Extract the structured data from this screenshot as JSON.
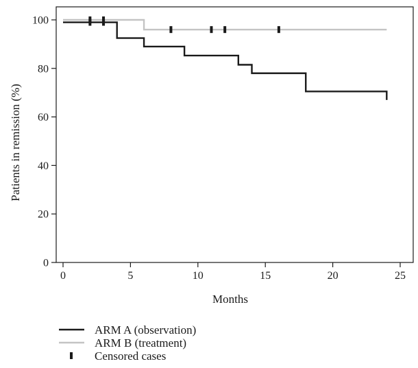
{
  "chart_data": {
    "type": "line",
    "subtype": "kaplan-meier step",
    "title": "",
    "xlabel": "Months",
    "ylabel": "Patients in remission (%)",
    "xlim": [
      0,
      25
    ],
    "ylim": [
      0,
      100
    ],
    "xticks": [
      0,
      5,
      10,
      15,
      20,
      25
    ],
    "yticks": [
      0,
      20,
      40,
      60,
      80,
      100
    ],
    "grid": false,
    "legend_position": "bottom-left, below plot",
    "series": [
      {
        "name": "ARM A (observation)",
        "color": "#1a1a1a",
        "steps": [
          [
            0,
            99
          ],
          [
            4,
            92.5
          ],
          [
            6,
            89
          ],
          [
            9,
            85.3
          ],
          [
            13,
            81.5
          ],
          [
            14,
            78
          ],
          [
            18,
            70.5
          ],
          [
            24,
            67
          ]
        ],
        "end_x": 24,
        "censored": [
          [
            2,
            99
          ],
          [
            3,
            99
          ]
        ]
      },
      {
        "name": "ARM B (treatment)",
        "color": "#c4c4c4",
        "steps": [
          [
            0,
            100
          ],
          [
            6,
            96
          ]
        ],
        "end_x": 24,
        "censored": [
          [
            2,
            100
          ],
          [
            3,
            100
          ],
          [
            8,
            96
          ],
          [
            11,
            96
          ],
          [
            12,
            96
          ],
          [
            16,
            96
          ]
        ]
      }
    ],
    "legend": [
      {
        "label": "ARM A (observation)",
        "symbol": "line",
        "color": "#1a1a1a"
      },
      {
        "label": "ARM B (treatment)",
        "symbol": "line",
        "color": "#c4c4c4"
      },
      {
        "label": "Censored cases",
        "symbol": "tick",
        "color": "#1a1a1a"
      }
    ]
  }
}
